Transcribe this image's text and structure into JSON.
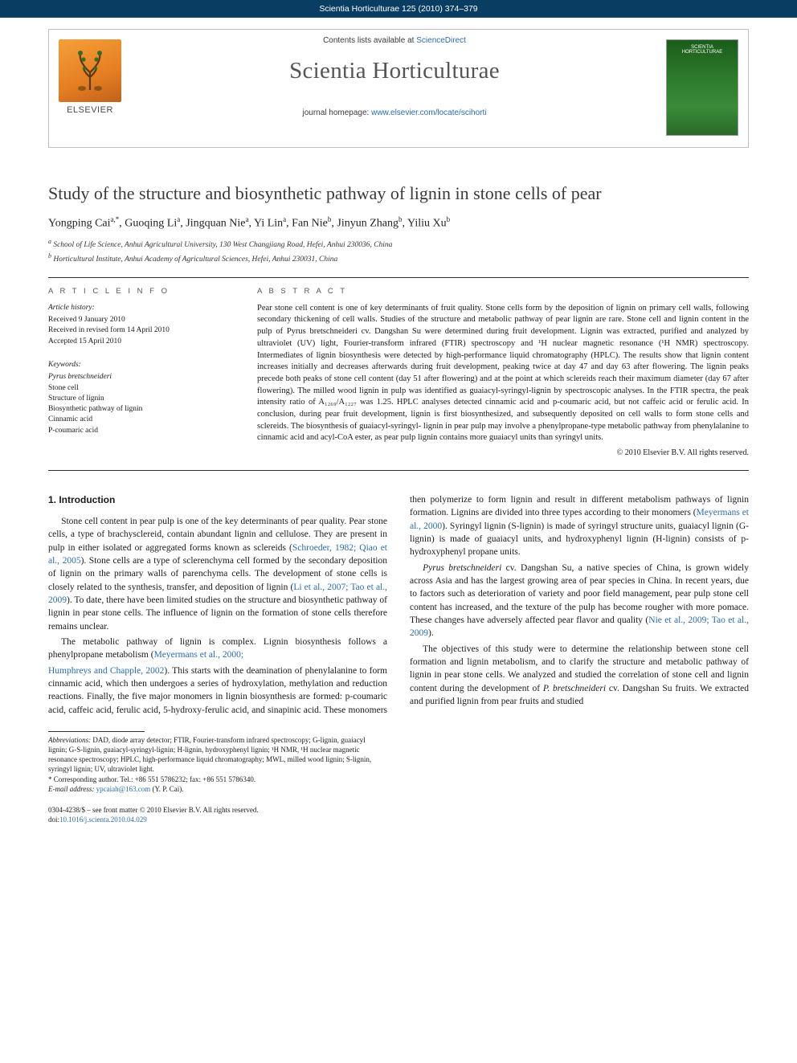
{
  "topbar": "Scientia Horticulturae 125 (2010) 374–379",
  "header": {
    "contents_prefix": "Contents lists available at ",
    "contents_link": "ScienceDirect",
    "journal": "Scientia Horticulturae",
    "homepage_prefix": "journal homepage: ",
    "homepage_url": "www.elsevier.com/locate/scihorti",
    "publisher": "ELSEVIER",
    "cover_label1": "SCIENTIA",
    "cover_label2": "HORTICULTURAE"
  },
  "title": "Study of the structure and biosynthetic pathway of lignin in stone cells of pear",
  "authors_html": "Yongping Cai<sup>a,*</sup>, Guoqing Li<sup>a</sup>, Jingquan Nie<sup>a</sup>, Yi Lin<sup>a</sup>, Fan Nie<sup>b</sup>, Jinyun Zhang<sup>b</sup>, Yiliu Xu<sup>b</sup>",
  "affiliations": {
    "a": "School of Life Science, Anhui Agricultural University, 130 West Changjiang Road, Hefei, Anhui 230036, China",
    "b": "Horticultural Institute, Anhui Academy of Agricultural Sciences, Hefei, Anhui 230031, China"
  },
  "info": {
    "heading": "A R T I C L E   I N F O",
    "history_hd": "Article history:",
    "received": "Received 9 January 2010",
    "revised": "Received in revised form 14 April 2010",
    "accepted": "Accepted 15 April 2010",
    "kw_hd": "Keywords:",
    "keywords": [
      "Pyrus bretschneideri",
      "Stone cell",
      "Structure of lignin",
      "Biosynthetic pathway of lignin",
      "Cinnamic acid",
      "P-coumaric acid"
    ]
  },
  "abstract": {
    "heading": "A B S T R A C T",
    "text": "Pear stone cell content is one of key determinants of fruit quality. Stone cells form by the deposition of lignin on primary cell walls, following secondary thickening of cell walls. Studies of the structure and metabolic pathway of pear lignin are rare. Stone cell and lignin content in the pulp of Pyrus bretschneideri cv. Dangshan Su were determined during fruit development. Lignin was extracted, purified and analyzed by ultraviolet (UV) light, Fourier-transform infrared (FTIR) spectroscopy and ¹H nuclear magnetic resonance (¹H NMR) spectroscopy. Intermediates of lignin biosynthesis were detected by high-performance liquid chromatography (HPLC). The results show that lignin content increases initially and decreases afterwards during fruit development, peaking twice at day 47 and day 63 after flowering. The lignin peaks precede both peaks of stone cell content (day 51 after flowering) and at the point at which sclereids reach their maximum diameter (day 67 after flowering). The milled wood lignin in pulp was identified as guaiacyl-syringyl-lignin by spectroscopic analyses. In the FTIR spectra, the peak intensity ratio of A₁₂₆₉/A₁₂₂₇ was 1.25. HPLC analyses detected cinnamic acid and p-coumaric acid, but not caffeic acid or ferulic acid. In conclusion, during pear fruit development, lignin is first biosynthesized, and subsequently deposited on cell walls to form stone cells and sclereids. The biosynthesis of guaiacyl-syringyl- lignin in pear pulp may involve a phenylpropane-type metabolic pathway from phenylalanine to cinnamic acid and acyl-CoA ester, as pear pulp lignin contains more guaiacyl units than syringyl units.",
    "copyright": "© 2010 Elsevier B.V. All rights reserved."
  },
  "section1": {
    "heading": "1. Introduction",
    "p1a": "Stone cell content in pear pulp is one of the key determinants of pear quality. Pear stone cells, a type of brachysclereid, contain abundant lignin and cellulose. They are present in pulp in either isolated or aggregated forms known as sclereids (",
    "p1c1": "Schroeder, 1982; Qiao et al., 2005",
    "p1b": "). Stone cells are a type of sclerenchyma cell formed by the secondary deposition of lignin on the primary walls of parenchyma cells. The development of stone cells is closely related to the synthesis, transfer, and deposition of lignin (",
    "p1c2": "Li et al., 2007; Tao et al., 2009",
    "p1c": "). To date, there have been limited studies on the structure and biosynthetic pathway of lignin in pear stone cells. The influence of lignin on the formation of stone cells therefore remains unclear.",
    "p2a": "The metabolic pathway of lignin is complex. Lignin biosynthesis follows a phenylpropane metabolism (",
    "p2c1": "Meyermans et al., 2000; ",
    "p3c1": "Humphreys and Chapple, 2002",
    "p3a": "). This starts with the deamination of phenylalanine to form cinnamic acid, which then undergoes a series of hydroxylation, methylation and reduction reactions. Finally, the five major monomers in lignin biosynthesis are formed: p-coumaric acid, caffeic acid, ferulic acid, 5-hydroxy-ferulic acid, and sinapinic acid. These monomers then polymerize to form lignin and result in different metabolism pathways of lignin formation. Lignins are divided into three types according to their monomers (",
    "p3c2": "Meyermans et al., 2000",
    "p3b": "). Syringyl lignin (S-lignin) is made of syringyl structure units, guaiacyl lignin (G-lignin) is made of guaiacyl units, and hydroxyphenyl lignin (H-lignin) consists of p-hydroxyphenyl propane units.",
    "p4": "Pyrus bretschneideri cv. Dangshan Su, a native species of China, is grown widely across Asia and has the largest growing area of pear species in China. In recent years, due to factors such as deterioration of variety and poor field management, pear pulp stone cell content has increased, and the texture of the pulp has become rougher with more pomace. These changes have adversely affected pear flavor and quality (",
    "p4c1": "Nie et al., 2009; Tao et al., 2009",
    "p4b": ").",
    "p5": "The objectives of this study were to determine the relationship between stone cell formation and lignin metabolism, and to clarify the structure and metabolic pathway of lignin in pear stone cells. We analyzed and studied the correlation of stone cell and lignin content during the development of P. bretschneideri cv. Dangshan Su fruits. We extracted and purified lignin from pear fruits and studied"
  },
  "footnotes": {
    "abbrev_label": "Abbreviations:",
    "abbrev": " DAD, diode array detector; FTIR, Fourier-transform infrared spectroscopy; G-lignin, guaiacyl lignin; G-S-lignin, guaiacyl-syringyl-lignin; H-lignin, hydroxyphenyl lignin; ¹H NMR, ¹H nuclear magnetic resonance spectroscopy; HPLC, high-performance liquid chromatography; MWL, milled wood lignin; S-lignin, syringyl lignin; UV, ultraviolet light.",
    "corr": "* Corresponding author. Tel.: +86 551 5786232; fax: +86 551 5786340.",
    "email_label": "E-mail address: ",
    "email": "ypcaiah@163.com",
    "email_tail": " (Y. P. Cai)."
  },
  "footer": {
    "issn": "0304-4238/$ – see front matter © 2010 Elsevier B.V. All rights reserved.",
    "doi_label": "doi:",
    "doi": "10.1016/j.scienta.2010.04.029"
  }
}
